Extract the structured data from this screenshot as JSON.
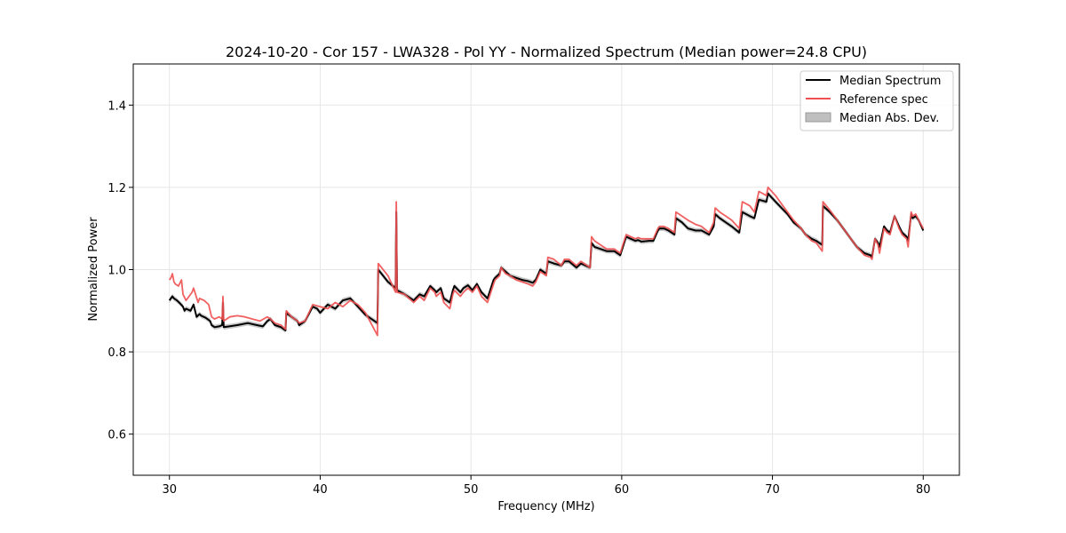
{
  "chart_data": {
    "type": "line",
    "title": "2024-10-20 - Cor 157 - LWA328 - Pol YY - Normalized Spectrum (Median power=24.8 CPU)",
    "xlabel": "Frequency (MHz)",
    "ylabel": "Normalized Power",
    "xlim": [
      27.6,
      82.4
    ],
    "ylim": [
      0.5,
      1.5
    ],
    "xticks": [
      30,
      40,
      50,
      60,
      70,
      80
    ],
    "yticks": [
      0.6,
      0.8,
      1.0,
      1.2,
      1.4
    ],
    "xtick_labels": [
      "30",
      "40",
      "50",
      "60",
      "70",
      "80"
    ],
    "ytick_labels": [
      "0.6",
      "0.8",
      "1.0",
      "1.2",
      "1.4"
    ],
    "grid": true,
    "legend_position": "top-right",
    "legend": [
      {
        "label": "Median Spectrum",
        "kind": "line",
        "color": "#000000"
      },
      {
        "label": "Reference spec",
        "kind": "line",
        "color": "#f05050"
      },
      {
        "label": "Median Abs. Dev.",
        "kind": "patch",
        "color": "#bfbfbf"
      }
    ],
    "series": [
      {
        "name": "Median Spectrum",
        "color": "#000000",
        "x": [
          30.0,
          30.2,
          30.3,
          30.5,
          30.7,
          30.9,
          31.0,
          31.1,
          31.4,
          31.6,
          31.8,
          32.0,
          32.1,
          32.4,
          32.7,
          32.8,
          33.0,
          33.3,
          33.5,
          33.55,
          33.6,
          34.5,
          35.2,
          35.8,
          36.2,
          36.5,
          36.7,
          37.0,
          37.4,
          37.7,
          37.75,
          38.1,
          38.5,
          38.6,
          39.0,
          39.5,
          39.8,
          40.0,
          40.5,
          41.0,
          41.5,
          42.0,
          42.5,
          43.0,
          43.8,
          43.85,
          44.5,
          45.0,
          45.05,
          45.1,
          45.6,
          46.2,
          46.6,
          46.9,
          47.3,
          47.6,
          47.7,
          48.0,
          48.2,
          48.6,
          48.8,
          48.9,
          49.3,
          49.5,
          49.8,
          50.1,
          50.4,
          50.7,
          51.1,
          51.5,
          51.6,
          51.9,
          52.0,
          52.3,
          52.6,
          53.0,
          53.4,
          53.8,
          54.1,
          54.3,
          54.6,
          55.0,
          55.1,
          55.5,
          56.0,
          56.2,
          56.5,
          57.0,
          57.3,
          57.9,
          58.0,
          58.2,
          58.6,
          59.0,
          59.5,
          59.9,
          60.3,
          60.6,
          60.9,
          61.1,
          61.3,
          61.8,
          62.1,
          62.4,
          62.5,
          62.8,
          63.1,
          63.5,
          63.6,
          64.0,
          64.4,
          64.9,
          65.3,
          65.8,
          66.1,
          66.2,
          66.5,
          66.9,
          67.3,
          67.8,
          68.0,
          68.5,
          68.8,
          69.1,
          69.6,
          69.7,
          70.2,
          70.6,
          71.0,
          71.4,
          71.9,
          72.2,
          72.6,
          72.9,
          73.3,
          73.35,
          73.8,
          74.3,
          74.8,
          75.2,
          75.6,
          76.1,
          76.5,
          76.6,
          76.8,
          77.0,
          77.1,
          77.4,
          77.6,
          77.8,
          78.1,
          78.4,
          78.6,
          78.9,
          79.0,
          79.2,
          79.3,
          79.5,
          79.7,
          80.0
        ],
        "values": [
          0.925,
          0.935,
          0.93,
          0.925,
          0.918,
          0.91,
          0.9,
          0.905,
          0.9,
          0.915,
          0.885,
          0.892,
          0.888,
          0.883,
          0.875,
          0.865,
          0.86,
          0.862,
          0.865,
          0.92,
          0.86,
          0.865,
          0.87,
          0.865,
          0.862,
          0.875,
          0.88,
          0.865,
          0.86,
          0.852,
          0.895,
          0.885,
          0.875,
          0.865,
          0.875,
          0.91,
          0.905,
          0.895,
          0.915,
          0.905,
          0.925,
          0.93,
          0.91,
          0.89,
          0.87,
          1.0,
          0.97,
          0.955,
          1.14,
          0.95,
          0.94,
          0.925,
          0.94,
          0.935,
          0.96,
          0.95,
          0.945,
          0.955,
          0.93,
          0.92,
          0.95,
          0.96,
          0.945,
          0.955,
          0.962,
          0.95,
          0.965,
          0.945,
          0.93,
          0.975,
          0.98,
          0.99,
          1.005,
          0.995,
          0.985,
          0.98,
          0.975,
          0.972,
          0.968,
          0.975,
          1.0,
          0.99,
          1.02,
          1.015,
          1.01,
          1.02,
          1.02,
          1.005,
          1.015,
          1.005,
          1.065,
          1.055,
          1.05,
          1.045,
          1.045,
          1.035,
          1.08,
          1.075,
          1.07,
          1.072,
          1.068,
          1.07,
          1.07,
          1.095,
          1.1,
          1.1,
          1.095,
          1.085,
          1.125,
          1.115,
          1.1,
          1.095,
          1.095,
          1.085,
          1.105,
          1.135,
          1.125,
          1.115,
          1.105,
          1.09,
          1.14,
          1.13,
          1.125,
          1.17,
          1.165,
          1.185,
          1.165,
          1.15,
          1.135,
          1.115,
          1.1,
          1.085,
          1.075,
          1.07,
          1.06,
          1.155,
          1.14,
          1.12,
          1.095,
          1.075,
          1.055,
          1.04,
          1.035,
          1.03,
          1.075,
          1.065,
          1.055,
          1.105,
          1.095,
          1.09,
          1.13,
          1.105,
          1.09,
          1.08,
          1.07,
          1.135,
          1.125,
          1.13,
          1.12,
          1.095
        ]
      },
      {
        "name": "Reference spec",
        "color": "#f05050",
        "x": [
          30.0,
          30.1,
          30.2,
          30.3,
          30.4,
          30.6,
          30.8,
          30.9,
          31.1,
          31.3,
          31.5,
          31.6,
          31.9,
          32.0,
          32.3,
          32.6,
          32.8,
          33.0,
          33.3,
          33.5,
          33.55,
          33.6,
          34.0,
          34.5,
          35.0,
          35.5,
          36.0,
          36.5,
          36.7,
          37.0,
          37.4,
          37.7,
          37.75,
          38.1,
          38.5,
          38.6,
          39.0,
          39.5,
          40.0,
          40.5,
          41.0,
          41.5,
          42.0,
          42.5,
          43.0,
          43.8,
          43.85,
          44.5,
          45.0,
          45.05,
          45.1,
          45.6,
          46.2,
          46.6,
          46.9,
          47.3,
          47.6,
          47.7,
          48.0,
          48.2,
          48.6,
          48.8,
          48.9,
          49.3,
          49.5,
          49.8,
          50.1,
          50.4,
          50.7,
          51.1,
          51.5,
          51.6,
          51.9,
          52.0,
          52.3,
          52.6,
          53.0,
          53.4,
          53.8,
          54.1,
          54.3,
          54.6,
          55.0,
          55.1,
          55.5,
          56.0,
          56.2,
          56.5,
          57.0,
          57.3,
          57.9,
          58.0,
          58.2,
          58.6,
          59.0,
          59.5,
          59.9,
          60.3,
          60.6,
          60.9,
          61.1,
          61.3,
          61.8,
          62.1,
          62.4,
          62.5,
          62.8,
          63.1,
          63.5,
          63.6,
          64.0,
          64.4,
          64.9,
          65.3,
          65.8,
          66.1,
          66.2,
          66.5,
          66.9,
          67.3,
          67.8,
          68.0,
          68.5,
          68.8,
          69.1,
          69.6,
          69.7,
          70.2,
          70.6,
          71.0,
          71.4,
          71.9,
          72.2,
          72.6,
          72.9,
          73.3,
          73.35,
          73.8,
          74.3,
          74.8,
          75.2,
          75.6,
          76.1,
          76.5,
          76.6,
          76.8,
          77.0,
          77.1,
          77.4,
          77.6,
          77.8,
          78.1,
          78.4,
          78.6,
          78.9,
          79.0,
          79.2,
          79.3,
          79.5,
          79.7,
          80.0
        ],
        "values": [
          0.975,
          0.98,
          0.99,
          0.97,
          0.965,
          0.96,
          0.975,
          0.94,
          0.925,
          0.935,
          0.945,
          0.955,
          0.92,
          0.93,
          0.925,
          0.915,
          0.885,
          0.88,
          0.885,
          0.88,
          0.935,
          0.875,
          0.885,
          0.888,
          0.885,
          0.88,
          0.875,
          0.885,
          0.88,
          0.87,
          0.865,
          0.855,
          0.9,
          0.885,
          0.875,
          0.87,
          0.875,
          0.915,
          0.91,
          0.905,
          0.92,
          0.91,
          0.925,
          0.915,
          0.895,
          0.84,
          1.015,
          0.985,
          0.945,
          1.165,
          0.945,
          0.94,
          0.92,
          0.935,
          0.925,
          0.955,
          0.945,
          0.935,
          0.945,
          0.92,
          0.905,
          0.94,
          0.95,
          0.935,
          0.945,
          0.955,
          0.945,
          0.96,
          0.935,
          0.92,
          0.965,
          0.975,
          0.985,
          1.005,
          0.99,
          0.985,
          0.975,
          0.97,
          0.965,
          0.96,
          0.97,
          0.995,
          0.985,
          1.03,
          1.025,
          1.01,
          1.025,
          1.025,
          1.01,
          1.02,
          1.005,
          1.08,
          1.07,
          1.06,
          1.05,
          1.05,
          1.04,
          1.085,
          1.08,
          1.075,
          1.078,
          1.075,
          1.075,
          1.075,
          1.1,
          1.105,
          1.105,
          1.1,
          1.09,
          1.14,
          1.13,
          1.12,
          1.11,
          1.105,
          1.09,
          1.115,
          1.15,
          1.14,
          1.13,
          1.12,
          1.1,
          1.165,
          1.155,
          1.14,
          1.19,
          1.18,
          1.2,
          1.18,
          1.16,
          1.14,
          1.12,
          1.1,
          1.085,
          1.07,
          1.065,
          1.045,
          1.165,
          1.145,
          1.12,
          1.095,
          1.075,
          1.055,
          1.035,
          1.03,
          1.025,
          1.075,
          1.06,
          1.04,
          1.1,
          1.09,
          1.085,
          1.13,
          1.1,
          1.085,
          1.075,
          1.055,
          1.14,
          1.13,
          1.135,
          1.12,
          1.1
        ]
      }
    ],
    "band": {
      "name": "Median Abs. Dev.",
      "color": "#bfbfbf",
      "half_width": 0.006
    }
  }
}
